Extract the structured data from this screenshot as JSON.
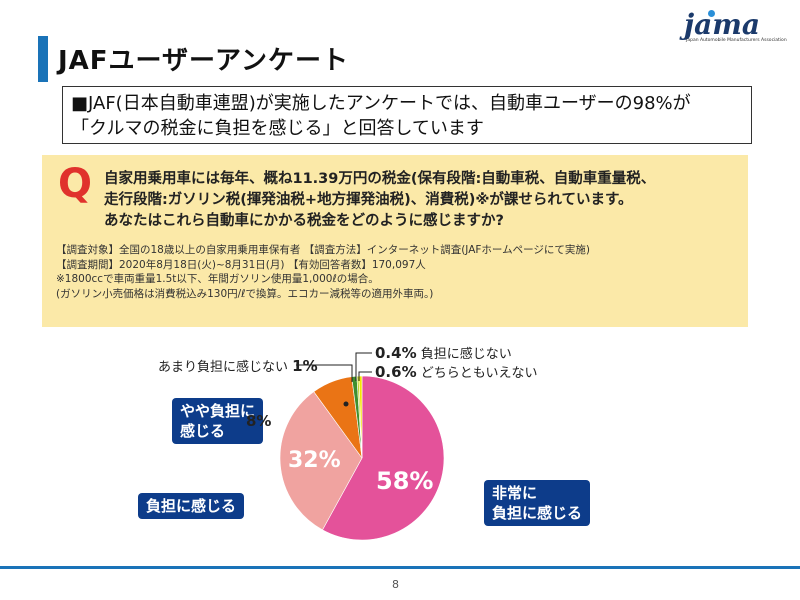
{
  "header": {
    "title": "JAFユーザーアンケート",
    "logo_text": "jama",
    "logo_subtitle": "Japan Automobile Manufacturers Association"
  },
  "summary": {
    "line1": "■JAF(日本自動車連盟)が実施したアンケートでは、自動車ユーザーの98%が",
    "line2": "「クルマの税金に負担を感じる」と回答しています"
  },
  "question": {
    "mark": "Q",
    "lines": [
      "自家用乗用車には毎年、概ね11.39万円の税金(保有段階:自動車税、自動車重量税、",
      "走行段階:ガソリン税(揮発油税+地方揮発油税)、消費税)※が課せられています。",
      "あなたはこれら自動車にかかる税金をどのように感じますか?"
    ],
    "notes": [
      "【調査対象】全国の18歳以上の自家用乗用車保有者 【調査方法】インターネット調査(JAFホームページにて実施)",
      "【調査期間】2020年8月18日(火)~8月31日(月) 【有効回答者数】170,097人",
      "※1800ccで車両重量1.5t以下、年間ガソリン使用量1,000ℓの場合。",
      "(ガソリン小売価格は消費税込み130円/ℓで換算。エコカー減税等の適用外車両。)"
    ]
  },
  "chart_data": {
    "type": "pie",
    "slices": [
      {
        "label": "非常に負担に感じる",
        "value": 58,
        "value_label": "58%",
        "color": "#e4529a"
      },
      {
        "label": "負担に感じる",
        "value": 32,
        "value_label": "32%",
        "color": "#f0a3a0"
      },
      {
        "label": "やや負担に感じる",
        "value": 8,
        "value_label": "8%",
        "color": "#ea7415"
      },
      {
        "label": "あまり負担に感じない",
        "value": 1,
        "value_label": "1%",
        "color": "#3f8f2f"
      },
      {
        "label": "負担に感じない",
        "value": 0.4,
        "value_label": "0.4%",
        "color": "#bcd630"
      },
      {
        "label": "どちらともいえない",
        "value": 0.6,
        "value_label": "0.6%",
        "color": "#f2e600"
      }
    ]
  },
  "labels": {
    "very_burden": [
      "非常に",
      "負担に感じる"
    ],
    "burden": "負担に感じる",
    "somewhat_burden": [
      "やや負担に",
      "感じる"
    ],
    "somewhat_pct": "8%",
    "not_much": "あまり負担に感じない",
    "not_much_pct": "1%",
    "none_pct": "0.4%",
    "none": "負担に感じない",
    "neutral_pct": "0.6%",
    "neutral": "どちらともいえない"
  },
  "footer": {
    "page": "8"
  }
}
